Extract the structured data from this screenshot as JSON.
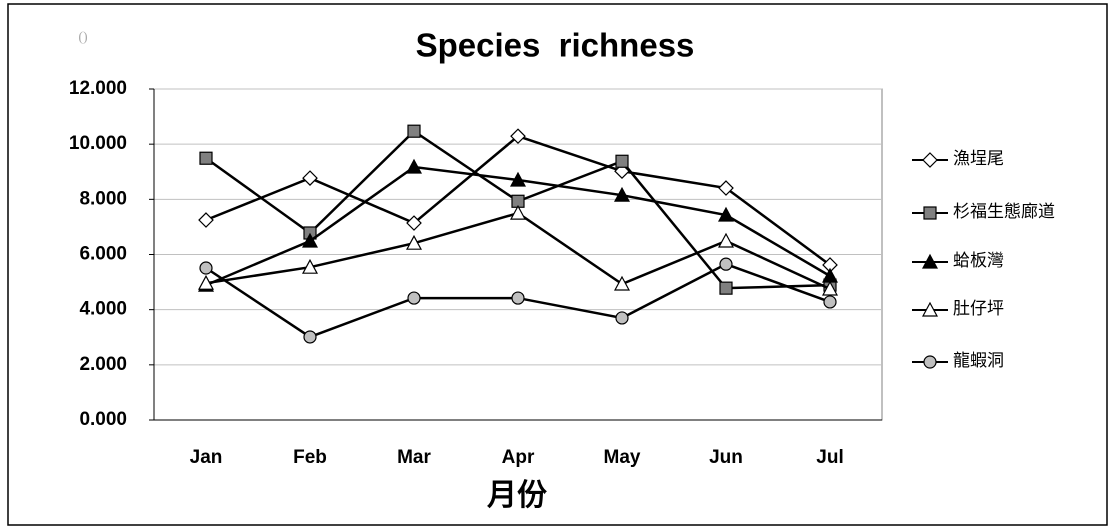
{
  "chart_data": {
    "type": "line",
    "title": "Species  richness",
    "note": "()",
    "x_label": "月份",
    "categories": [
      "Jan",
      "Feb",
      "Mar",
      "Apr",
      "May",
      "Jun",
      "Jul"
    ],
    "ylim": [
      0,
      12
    ],
    "yticks": [
      {
        "value": 0,
        "label": "0.000"
      },
      {
        "value": 2,
        "label": "2.000"
      },
      {
        "value": 4,
        "label": "4.000"
      },
      {
        "value": 6,
        "label": "6.000"
      },
      {
        "value": 8,
        "label": "8.000"
      },
      {
        "value": 10,
        "label": "10.000"
      },
      {
        "value": 12,
        "label": "12.000"
      }
    ],
    "grid": true,
    "legend": "right",
    "series": [
      {
        "name": "漁埕尾",
        "color": "#000000",
        "marker": "diamond",
        "marker_color": "#ffffff",
        "values": [
          7.25,
          8.77,
          7.14,
          10.29,
          9.02,
          8.41,
          5.62
        ]
      },
      {
        "name": "杉福生態廊道",
        "color": "#000000",
        "marker": "square",
        "marker_color": "#808080",
        "values": [
          9.49,
          6.78,
          10.47,
          7.93,
          9.38,
          4.78,
          4.89
        ]
      },
      {
        "name": "蛤板灣",
        "color": "#000000",
        "marker": "triangle",
        "marker_color": "#000000",
        "values": [
          4.89,
          6.49,
          9.17,
          8.7,
          8.15,
          7.43,
          5.22
        ]
      },
      {
        "name": "肚仔坪",
        "color": "#000000",
        "marker": "triangle",
        "marker_color": "#ffffff",
        "values": [
          4.96,
          5.54,
          6.41,
          7.5,
          4.93,
          6.49,
          4.75
        ]
      },
      {
        "name": "龍蝦洞",
        "color": "#000000",
        "marker": "circle",
        "marker_color": "#c0c0c0",
        "values": [
          5.51,
          3.01,
          4.42,
          4.42,
          3.7,
          5.65,
          4.28
        ]
      }
    ]
  }
}
